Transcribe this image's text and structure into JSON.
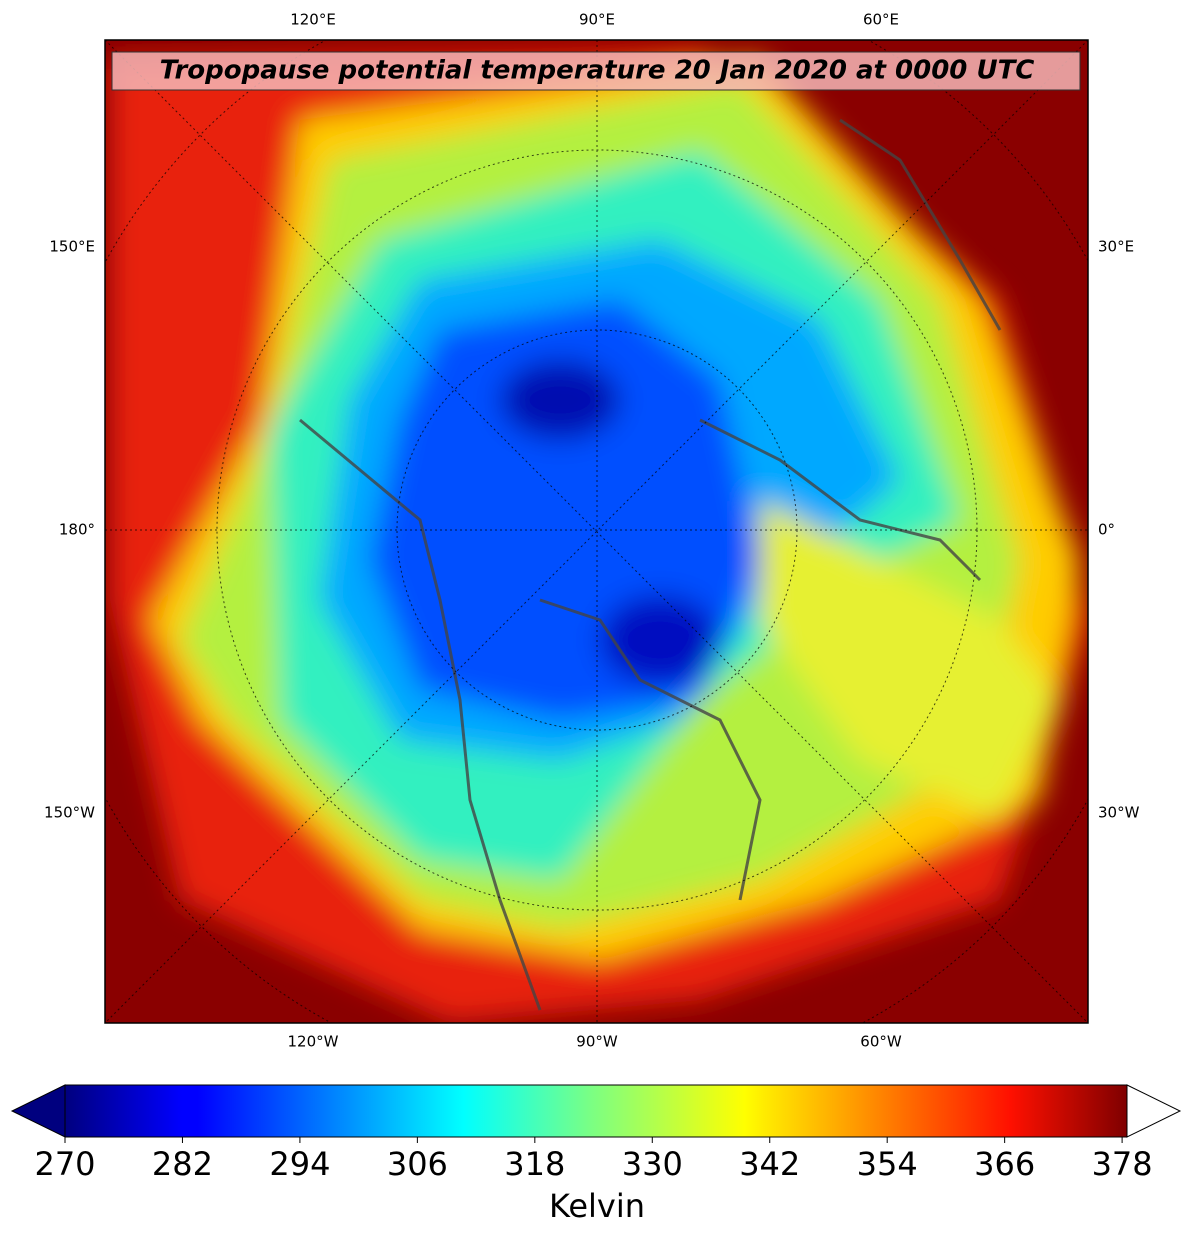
{
  "title": "Tropopause potential temperature 20 Jan 2020 at 0000 UTC",
  "map": {
    "top_labels": [
      "120°E",
      "90°E",
      "60°E"
    ],
    "bottom_labels": [
      "120°W",
      "90°W",
      "60°W"
    ],
    "left_labels": [
      "150°E",
      "180°",
      "150°W"
    ],
    "right_labels": [
      "30°E",
      "0°",
      "30°W"
    ]
  },
  "colorbar": {
    "label": "Kelvin",
    "colormap": "jet",
    "range": [
      270,
      378.5
    ],
    "ticks": [
      270,
      282,
      294,
      306,
      318,
      330,
      342,
      354,
      366,
      378
    ],
    "extend": "both"
  }
}
